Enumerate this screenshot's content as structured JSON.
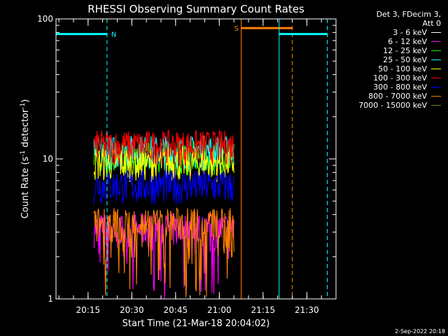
{
  "chart_data": {
    "type": "line",
    "title": "RHESSI Observing Summary Count Rates",
    "xlabel": "Start Time (21-Mar-18 20:04:02)",
    "ylabel_main": "Count Rate (s",
    "ylabel_sup1": "-1",
    "ylabel_mid": " detector",
    "ylabel_sup2": "-1",
    "ylabel_end": ")",
    "yscale": "log",
    "ylim": [
      1,
      100
    ],
    "yticks": [
      "1",
      "10",
      "100"
    ],
    "x_range_minutes": [
      0,
      96
    ],
    "xticks": [
      {
        "label": "20:15",
        "min": 11
      },
      {
        "label": "20:30",
        "min": 26
      },
      {
        "label": "20:45",
        "min": 41
      },
      {
        "label": "21:00",
        "min": 56
      },
      {
        "label": "21:15",
        "min": 71
      },
      {
        "label": "21:30",
        "min": 86
      }
    ],
    "legend_header": [
      "Det 3, FDecim 3,",
      "Att 0"
    ],
    "series": [
      {
        "name": "3 - 6 keV",
        "color": "#ffffff",
        "base": 0
      },
      {
        "name": "6 - 12 keV",
        "color": "#ff00ff",
        "base": 3.2
      },
      {
        "name": "12 - 25 keV",
        "color": "#00ff00",
        "base": 10.5
      },
      {
        "name": "25 - 50 keV",
        "color": "#00ffff",
        "base": 11.5
      },
      {
        "name": "50 - 100 keV",
        "color": "#ffff00",
        "base": 9.5
      },
      {
        "name": "100 - 300 keV",
        "color": "#ff0000",
        "base": 12.5
      },
      {
        "name": "300 - 800 keV",
        "color": "#0000ff",
        "base": 6.5
      },
      {
        "name": "800 - 7000 keV",
        "color": "#ff8000",
        "base": 3.5
      },
      {
        "name": "7000 - 15000 keV",
        "color": "#808000",
        "base": 0
      }
    ],
    "data_window_minutes": [
      13,
      61
    ],
    "markers": [
      {
        "label": "N",
        "color": "#00ffff",
        "bar_start": 0,
        "bar_end": 17.5,
        "bar_value": 78,
        "dashed_at": 17.5,
        "solid_at": 0
      },
      {
        "label": "S",
        "color": "#ff8000",
        "bar_start": 63.5,
        "bar_end": 81,
        "bar_value": 86,
        "dashed_at": 81,
        "solid_at": 63.5
      },
      {
        "label": "",
        "color": "#00ffff",
        "bar_start": 76.5,
        "bar_end": 93,
        "bar_value": 78,
        "dashed_at": 93,
        "solid_at": 76.5
      }
    ]
  },
  "footer": "2-Sep-2022 20:18"
}
